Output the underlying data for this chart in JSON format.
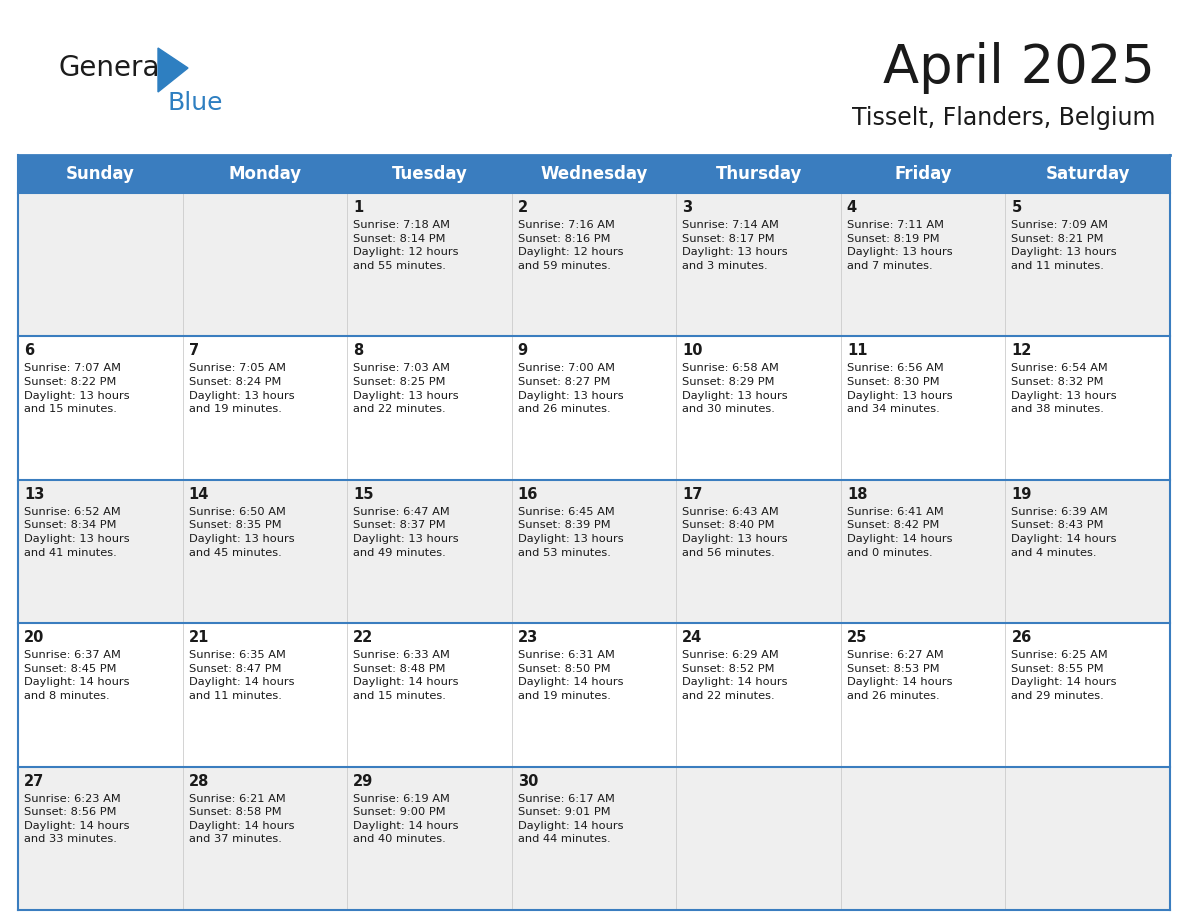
{
  "title": "April 2025",
  "subtitle": "Tisselt, Flanders, Belgium",
  "header_bg": "#3a7dbf",
  "header_text": "#ffffff",
  "row_bg_a": "#efefef",
  "row_bg_b": "#ffffff",
  "row_divider_color": "#3a7dbf",
  "col_divider_color": "#cccccc",
  "text_color": "#1a1a1a",
  "day_headers": [
    "Sunday",
    "Monday",
    "Tuesday",
    "Wednesday",
    "Thursday",
    "Friday",
    "Saturday"
  ],
  "weeks": [
    [
      {
        "day": "",
        "info": ""
      },
      {
        "day": "",
        "info": ""
      },
      {
        "day": "1",
        "info": "Sunrise: 7:18 AM\nSunset: 8:14 PM\nDaylight: 12 hours\nand 55 minutes."
      },
      {
        "day": "2",
        "info": "Sunrise: 7:16 AM\nSunset: 8:16 PM\nDaylight: 12 hours\nand 59 minutes."
      },
      {
        "day": "3",
        "info": "Sunrise: 7:14 AM\nSunset: 8:17 PM\nDaylight: 13 hours\nand 3 minutes."
      },
      {
        "day": "4",
        "info": "Sunrise: 7:11 AM\nSunset: 8:19 PM\nDaylight: 13 hours\nand 7 minutes."
      },
      {
        "day": "5",
        "info": "Sunrise: 7:09 AM\nSunset: 8:21 PM\nDaylight: 13 hours\nand 11 minutes."
      }
    ],
    [
      {
        "day": "6",
        "info": "Sunrise: 7:07 AM\nSunset: 8:22 PM\nDaylight: 13 hours\nand 15 minutes."
      },
      {
        "day": "7",
        "info": "Sunrise: 7:05 AM\nSunset: 8:24 PM\nDaylight: 13 hours\nand 19 minutes."
      },
      {
        "day": "8",
        "info": "Sunrise: 7:03 AM\nSunset: 8:25 PM\nDaylight: 13 hours\nand 22 minutes."
      },
      {
        "day": "9",
        "info": "Sunrise: 7:00 AM\nSunset: 8:27 PM\nDaylight: 13 hours\nand 26 minutes."
      },
      {
        "day": "10",
        "info": "Sunrise: 6:58 AM\nSunset: 8:29 PM\nDaylight: 13 hours\nand 30 minutes."
      },
      {
        "day": "11",
        "info": "Sunrise: 6:56 AM\nSunset: 8:30 PM\nDaylight: 13 hours\nand 34 minutes."
      },
      {
        "day": "12",
        "info": "Sunrise: 6:54 AM\nSunset: 8:32 PM\nDaylight: 13 hours\nand 38 minutes."
      }
    ],
    [
      {
        "day": "13",
        "info": "Sunrise: 6:52 AM\nSunset: 8:34 PM\nDaylight: 13 hours\nand 41 minutes."
      },
      {
        "day": "14",
        "info": "Sunrise: 6:50 AM\nSunset: 8:35 PM\nDaylight: 13 hours\nand 45 minutes."
      },
      {
        "day": "15",
        "info": "Sunrise: 6:47 AM\nSunset: 8:37 PM\nDaylight: 13 hours\nand 49 minutes."
      },
      {
        "day": "16",
        "info": "Sunrise: 6:45 AM\nSunset: 8:39 PM\nDaylight: 13 hours\nand 53 minutes."
      },
      {
        "day": "17",
        "info": "Sunrise: 6:43 AM\nSunset: 8:40 PM\nDaylight: 13 hours\nand 56 minutes."
      },
      {
        "day": "18",
        "info": "Sunrise: 6:41 AM\nSunset: 8:42 PM\nDaylight: 14 hours\nand 0 minutes."
      },
      {
        "day": "19",
        "info": "Sunrise: 6:39 AM\nSunset: 8:43 PM\nDaylight: 14 hours\nand 4 minutes."
      }
    ],
    [
      {
        "day": "20",
        "info": "Sunrise: 6:37 AM\nSunset: 8:45 PM\nDaylight: 14 hours\nand 8 minutes."
      },
      {
        "day": "21",
        "info": "Sunrise: 6:35 AM\nSunset: 8:47 PM\nDaylight: 14 hours\nand 11 minutes."
      },
      {
        "day": "22",
        "info": "Sunrise: 6:33 AM\nSunset: 8:48 PM\nDaylight: 14 hours\nand 15 minutes."
      },
      {
        "day": "23",
        "info": "Sunrise: 6:31 AM\nSunset: 8:50 PM\nDaylight: 14 hours\nand 19 minutes."
      },
      {
        "day": "24",
        "info": "Sunrise: 6:29 AM\nSunset: 8:52 PM\nDaylight: 14 hours\nand 22 minutes."
      },
      {
        "day": "25",
        "info": "Sunrise: 6:27 AM\nSunset: 8:53 PM\nDaylight: 14 hours\nand 26 minutes."
      },
      {
        "day": "26",
        "info": "Sunrise: 6:25 AM\nSunset: 8:55 PM\nDaylight: 14 hours\nand 29 minutes."
      }
    ],
    [
      {
        "day": "27",
        "info": "Sunrise: 6:23 AM\nSunset: 8:56 PM\nDaylight: 14 hours\nand 33 minutes."
      },
      {
        "day": "28",
        "info": "Sunrise: 6:21 AM\nSunset: 8:58 PM\nDaylight: 14 hours\nand 37 minutes."
      },
      {
        "day": "29",
        "info": "Sunrise: 6:19 AM\nSunset: 9:00 PM\nDaylight: 14 hours\nand 40 minutes."
      },
      {
        "day": "30",
        "info": "Sunrise: 6:17 AM\nSunset: 9:01 PM\nDaylight: 14 hours\nand 44 minutes."
      },
      {
        "day": "",
        "info": ""
      },
      {
        "day": "",
        "info": ""
      },
      {
        "day": "",
        "info": ""
      }
    ]
  ],
  "logo_general_color": "#1c1c1c",
  "logo_blue_color": "#2e7fc1",
  "title_fontsize": 38,
  "subtitle_fontsize": 17,
  "header_fontsize": 12,
  "day_num_fontsize": 10.5,
  "info_fontsize": 8.2
}
